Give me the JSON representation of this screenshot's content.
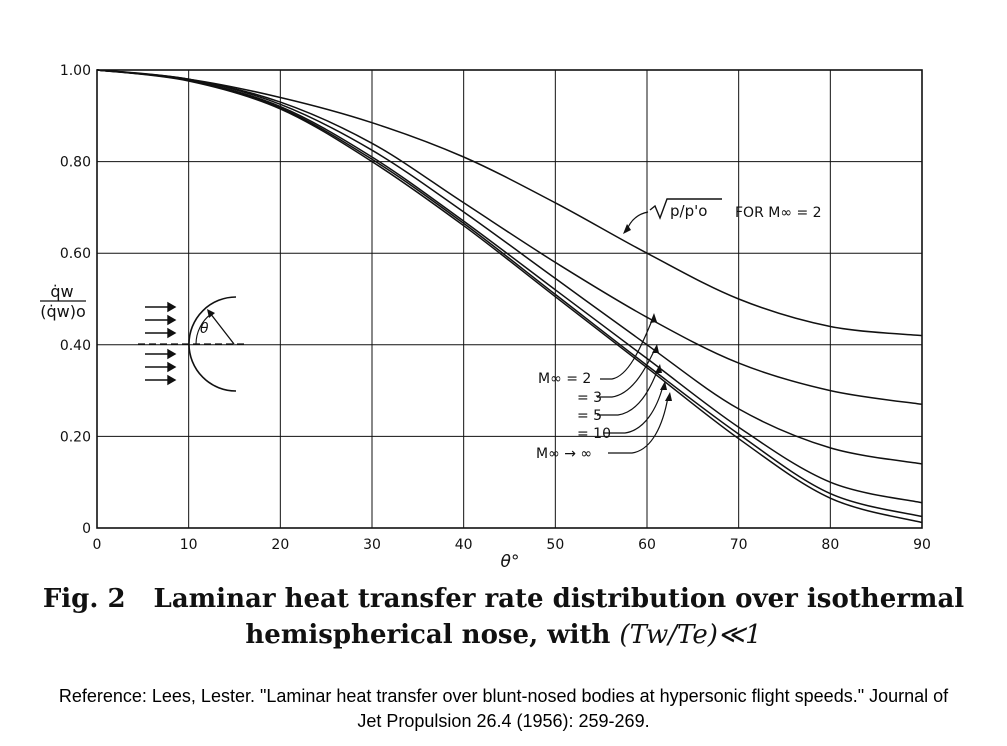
{
  "chart_data": {
    "type": "line",
    "xlabel": "θ°",
    "ylabel_num": "q̇w",
    "ylabel_den": "(q̇w)o",
    "xlim": [
      0,
      90
    ],
    "ylim": [
      0,
      1.0
    ],
    "grid": true,
    "x_ticks": [
      {
        "v": 0,
        "label": "0"
      },
      {
        "v": 10,
        "label": "10"
      },
      {
        "v": 20,
        "label": "20"
      },
      {
        "v": 30,
        "label": "30"
      },
      {
        "v": 40,
        "label": "40"
      },
      {
        "v": 50,
        "label": "50"
      },
      {
        "v": 60,
        "label": "60"
      },
      {
        "v": 70,
        "label": "70"
      },
      {
        "v": 80,
        "label": "80"
      },
      {
        "v": 90,
        "label": "90"
      }
    ],
    "y_ticks": [
      {
        "v": 0,
        "label": "0"
      },
      {
        "v": 0.2,
        "label": "0.20"
      },
      {
        "v": 0.4,
        "label": "0.40"
      },
      {
        "v": 0.6,
        "label": "0.60"
      },
      {
        "v": 0.8,
        "label": "0.80"
      },
      {
        "v": 1.0,
        "label": "1.00"
      }
    ],
    "x": [
      0,
      10,
      20,
      30,
      40,
      50,
      60,
      70,
      80,
      90
    ],
    "series": [
      {
        "name": "√p/p'o FOR M∞ = 2",
        "values": [
          1.0,
          0.98,
          0.94,
          0.885,
          0.81,
          0.71,
          0.6,
          0.5,
          0.44,
          0.42
        ]
      },
      {
        "name": "M∞ = 2",
        "values": [
          1.0,
          0.98,
          0.93,
          0.84,
          0.71,
          0.58,
          0.46,
          0.36,
          0.3,
          0.27
        ]
      },
      {
        "name": "= 3",
        "values": [
          1.0,
          0.98,
          0.925,
          0.825,
          0.69,
          0.545,
          0.4,
          0.26,
          0.175,
          0.14
        ]
      },
      {
        "name": "= 5",
        "values": [
          1.0,
          0.978,
          0.92,
          0.81,
          0.67,
          0.52,
          0.37,
          0.22,
          0.1,
          0.055
        ]
      },
      {
        "name": "= 10",
        "values": [
          1.0,
          0.977,
          0.917,
          0.805,
          0.665,
          0.51,
          0.355,
          0.205,
          0.075,
          0.025
        ]
      },
      {
        "name": "M∞ → ∞",
        "values": [
          1.0,
          0.976,
          0.915,
          0.8,
          0.66,
          0.505,
          0.35,
          0.195,
          0.065,
          0.012
        ]
      }
    ],
    "annotations": {
      "sqrt_label": "p/p'o",
      "for_label": "FOR M∞ = 2",
      "mach_labels": [
        "M∞  = 2",
        "= 3",
        "= 5",
        "= 10",
        "M∞ → ∞"
      ],
      "inset_angle": "θ"
    }
  },
  "caption": {
    "fig_number": "Fig. 2",
    "line1": "Laminar heat transfer rate distribution over isothermal",
    "line2_text": "hemispherical nose, with ",
    "math": "(Tw/Te)≪1"
  },
  "reference": {
    "line1": "Reference: Lees, Lester. \"Laminar heat transfer over blunt-nosed bodies at hypersonic flight speeds.\" Journal of",
    "line2": "Jet Propulsion 26.4 (1956): 259-269."
  }
}
